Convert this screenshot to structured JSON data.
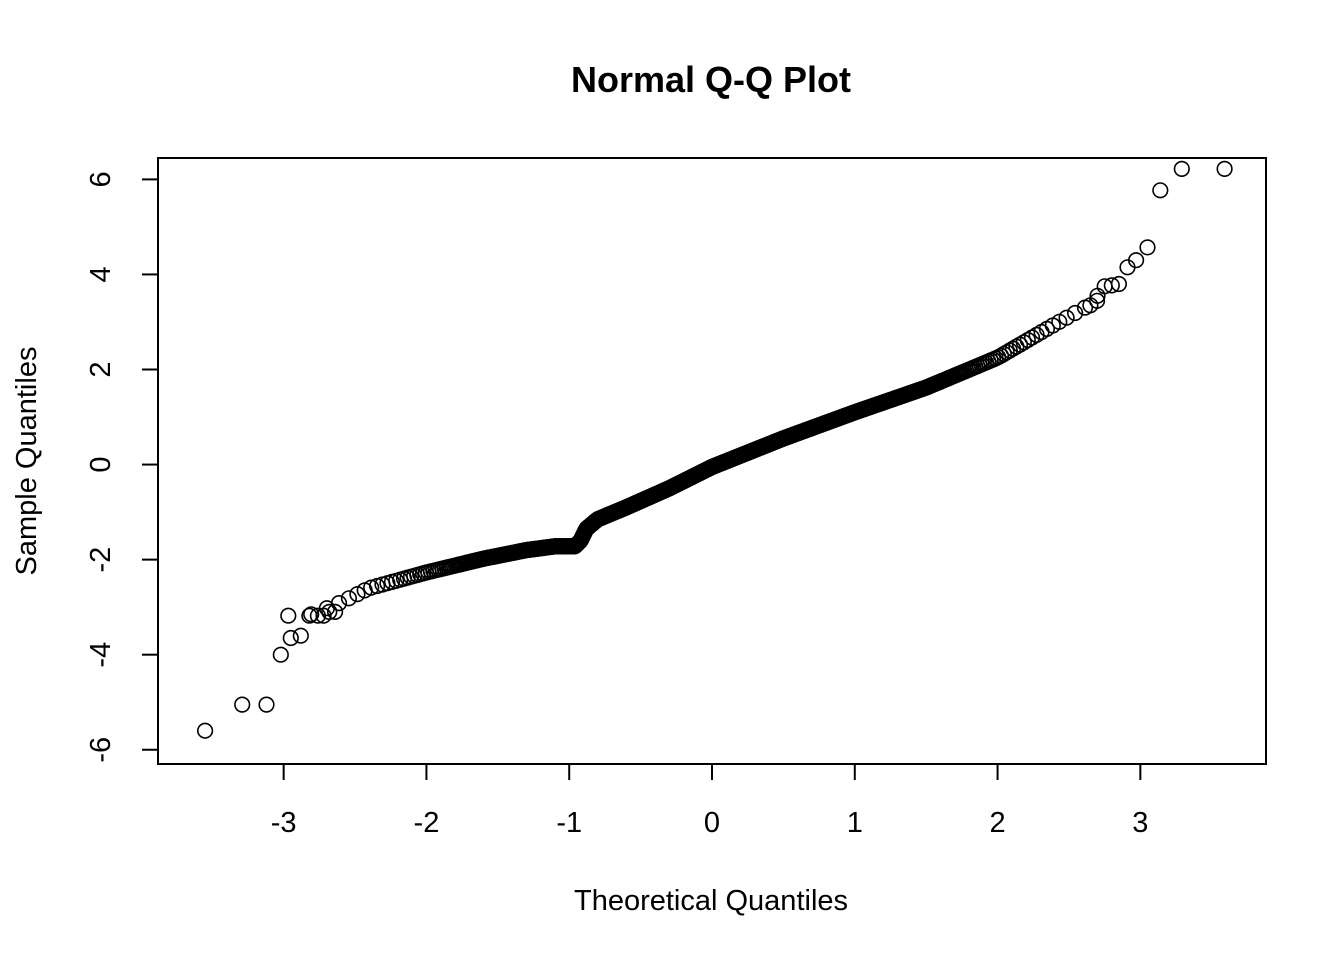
{
  "chart_data": {
    "type": "scatter",
    "title": "Normal Q-Q Plot",
    "xlabel": "Theoretical Quantiles",
    "ylabel": "Sample Quantiles",
    "xlim": [
      -3.88,
      3.88
    ],
    "ylim": [
      -6.3,
      6.45
    ],
    "xticks": [
      -3,
      -2,
      -1,
      0,
      1,
      2,
      3
    ],
    "xtick_labels": [
      "-3",
      "-2",
      "-1",
      "0",
      "1",
      "2",
      "3"
    ],
    "yticks": [
      -6,
      -4,
      -2,
      0,
      2,
      4,
      6
    ],
    "ytick_labels": [
      "-6",
      "-4",
      "-2",
      "0",
      "2",
      "4",
      "6"
    ],
    "grid": false,
    "marker": "open-circle",
    "colors": {
      "points": "#000000",
      "frame": "#000000",
      "background": "#ffffff"
    },
    "n_points": 1000,
    "quantile_curve": [
      [
        -3.09,
        -3.2
      ],
      [
        -2.8,
        -3.15
      ],
      [
        -2.6,
        -2.9
      ],
      [
        -2.4,
        -2.6
      ],
      [
        -2.0,
        -2.27
      ],
      [
        -1.6,
        -1.98
      ],
      [
        -1.3,
        -1.8
      ],
      [
        -1.1,
        -1.72
      ],
      [
        -0.96,
        -1.72
      ],
      [
        -0.92,
        -1.6
      ],
      [
        -0.88,
        -1.35
      ],
      [
        -0.8,
        -1.15
      ],
      [
        -0.6,
        -0.9
      ],
      [
        -0.3,
        -0.5
      ],
      [
        0.0,
        -0.05
      ],
      [
        0.5,
        0.55
      ],
      [
        1.0,
        1.1
      ],
      [
        1.5,
        1.62
      ],
      [
        2.0,
        2.25
      ],
      [
        2.4,
        2.95
      ],
      [
        2.7,
        3.45
      ],
      [
        2.8,
        3.6
      ]
    ],
    "tail_points": [
      {
        "x": -3.55,
        "y": -5.6
      },
      {
        "x": -3.29,
        "y": -5.05
      },
      {
        "x": -3.12,
        "y": -5.05
      },
      {
        "x": -3.02,
        "y": -4.0
      },
      {
        "x": -2.95,
        "y": -3.65
      },
      {
        "x": -2.88,
        "y": -3.6
      },
      {
        "x": -2.82,
        "y": -3.18
      },
      {
        "x": -2.76,
        "y": -3.18
      },
      {
        "x": -2.72,
        "y": -3.18
      },
      {
        "x": -2.68,
        "y": -3.1
      },
      {
        "x": -2.64,
        "y": -3.1
      },
      {
        "x": 2.65,
        "y": 3.35
      },
      {
        "x": 2.7,
        "y": 3.55
      },
      {
        "x": 2.75,
        "y": 3.75
      },
      {
        "x": 2.8,
        "y": 3.77
      },
      {
        "x": 2.85,
        "y": 3.8
      },
      {
        "x": 2.91,
        "y": 4.15
      },
      {
        "x": 2.97,
        "y": 4.3
      },
      {
        "x": 3.05,
        "y": 4.57
      },
      {
        "x": 3.14,
        "y": 5.77
      },
      {
        "x": 3.29,
        "y": 6.22
      },
      {
        "x": 3.59,
        "y": 6.22
      }
    ]
  }
}
